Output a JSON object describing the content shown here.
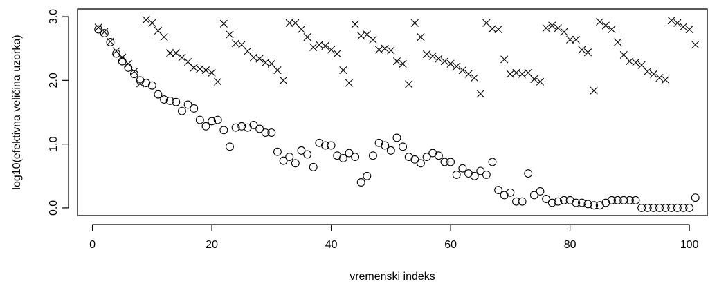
{
  "chart_data": {
    "type": "scatter",
    "title": "",
    "xlabel": "vremenski indeks",
    "ylabel": "log10(efektivna veličina uzorka)",
    "xlim": [
      -2.5,
      103
    ],
    "ylim": [
      -0.12,
      3.12
    ],
    "x_ticks": [
      {
        "value": 0,
        "label": "0"
      },
      {
        "value": 20,
        "label": "20"
      },
      {
        "value": 40,
        "label": "40"
      },
      {
        "value": 60,
        "label": "60"
      },
      {
        "value": 80,
        "label": "80"
      },
      {
        "value": 100,
        "label": "100"
      }
    ],
    "y_ticks": [
      {
        "value": 0,
        "label": "0.0"
      },
      {
        "value": 1,
        "label": "1.0"
      },
      {
        "value": 2,
        "label": "2.0"
      },
      {
        "value": 3,
        "label": "3.0"
      }
    ],
    "grid": false,
    "legend": "none",
    "series": [
      {
        "marker": "cross",
        "values": [
          2.83,
          2.76,
          2.61,
          2.46,
          2.36,
          2.26,
          2.14,
          1.95,
          2.95,
          2.9,
          2.78,
          2.68,
          2.43,
          2.43,
          2.36,
          2.29,
          2.2,
          2.18,
          2.16,
          2.12,
          1.98,
          2.89,
          2.72,
          2.58,
          2.56,
          2.46,
          2.36,
          2.34,
          2.28,
          2.26,
          2.16,
          2.0,
          2.9,
          2.9,
          2.8,
          2.68,
          2.52,
          2.56,
          2.54,
          2.48,
          2.42,
          2.16,
          1.96,
          2.88,
          2.7,
          2.72,
          2.64,
          2.48,
          2.5,
          2.47,
          2.3,
          2.26,
          1.94,
          2.9,
          2.68,
          2.41,
          2.38,
          2.34,
          2.3,
          2.26,
          2.22,
          2.16,
          2.1,
          2.04,
          1.79,
          2.9,
          2.81,
          2.8,
          2.33,
          2.1,
          2.12,
          2.1,
          2.12,
          2.02,
          1.98,
          2.82,
          2.86,
          2.82,
          2.76,
          2.64,
          2.64,
          2.48,
          2.44,
          1.84,
          2.92,
          2.86,
          2.8,
          2.6,
          2.4,
          2.3,
          2.28,
          2.24,
          2.14,
          2.1,
          2.04,
          2.01,
          2.94,
          2.9,
          2.84,
          2.8,
          2.56
        ]
      },
      {
        "marker": "circle",
        "values": [
          2.8,
          2.74,
          2.6,
          2.42,
          2.3,
          2.2,
          2.1,
          2.0,
          1.96,
          1.92,
          1.78,
          1.7,
          1.68,
          1.66,
          1.52,
          1.62,
          1.56,
          1.38,
          1.28,
          1.36,
          1.38,
          1.22,
          0.96,
          1.26,
          1.28,
          1.26,
          1.3,
          1.24,
          1.18,
          1.18,
          0.88,
          0.74,
          0.8,
          0.7,
          0.9,
          0.84,
          0.64,
          1.02,
          0.98,
          0.98,
          0.82,
          0.78,
          0.86,
          0.8,
          0.4,
          0.5,
          0.82,
          1.02,
          0.98,
          0.9,
          1.1,
          0.96,
          0.8,
          0.76,
          0.7,
          0.8,
          0.86,
          0.82,
          0.72,
          0.72,
          0.52,
          0.62,
          0.54,
          0.5,
          0.58,
          0.52,
          0.72,
          0.28,
          0.2,
          0.24,
          0.1,
          0.1,
          0.54,
          0.2,
          0.26,
          0.14,
          0.08,
          0.1,
          0.12,
          0.12,
          0.08,
          0.08,
          0.06,
          0.04,
          0.04,
          0.08,
          0.12,
          0.12,
          0.12,
          0.12,
          0.12,
          0.0,
          0.0,
          0.0,
          0.0,
          0.0,
          0.0,
          0.0,
          0.0,
          0.0,
          0.16
        ]
      }
    ]
  }
}
